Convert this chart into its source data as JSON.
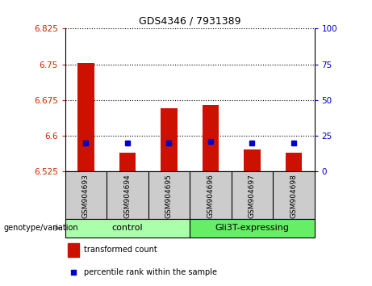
{
  "title": "GDS4346 / 7931389",
  "samples": [
    "GSM904693",
    "GSM904694",
    "GSM904695",
    "GSM904696",
    "GSM904697",
    "GSM904698"
  ],
  "group_labels": [
    "control",
    "Gli3T-expressing"
  ],
  "group_colors": [
    "#aaffaa",
    "#66ee66"
  ],
  "bar_color": "#cc1100",
  "dot_color": "#0000cc",
  "ylim_left": [
    6.525,
    6.825
  ],
  "ylim_right": [
    0,
    100
  ],
  "yticks_left": [
    6.525,
    6.6,
    6.675,
    6.75,
    6.825
  ],
  "yticks_right": [
    0,
    25,
    50,
    75,
    100
  ],
  "ytick_labels_left": [
    "6.525",
    "6.6",
    "6.675",
    "6.75",
    "6.825"
  ],
  "ytick_labels_right": [
    "0",
    "25",
    "50",
    "75",
    "100"
  ],
  "transformed_counts": [
    6.752,
    6.565,
    6.658,
    6.665,
    6.572,
    6.565
  ],
  "percentile_ranks": [
    20,
    20,
    20,
    21,
    20,
    20
  ],
  "baseline": 6.525,
  "left_color": "#cc2200",
  "right_color": "#0000cc",
  "bg_color": "#ffffff",
  "plot_bg": "#ffffff",
  "tick_label_bg": "#cccccc",
  "legend_tc_label": "transformed count",
  "legend_pr_label": "percentile rank within the sample",
  "genotype_label": "genotype/variation",
  "control_count": 3,
  "gli3t_count": 3
}
